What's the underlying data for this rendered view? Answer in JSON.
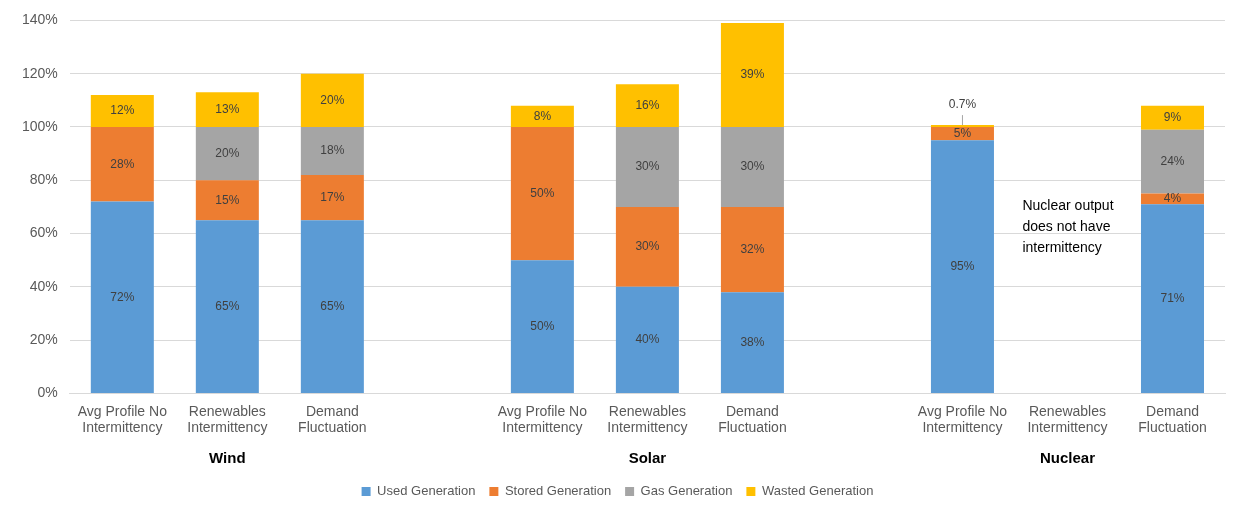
{
  "chart_data": {
    "type": "bar",
    "stacked": true,
    "categories": [
      "Avg Profile No Intermittency",
      "Renewables Intermittency",
      "Demand Fluctuation",
      null,
      "Avg Profile No Intermittency",
      "Renewables Intermittency",
      "Demand Fluctuation",
      null,
      "Avg Profile No Intermittency",
      "Renewables Intermittency",
      "Demand Fluctuation"
    ],
    "series": [
      {
        "name": "Used Generation",
        "color": "#5b9bd5",
        "values": [
          72,
          65,
          65,
          null,
          50,
          40,
          38,
          null,
          95,
          null,
          71
        ],
        "value_labels": [
          "72%",
          "65%",
          "65%",
          null,
          "50%",
          "40%",
          "38%",
          null,
          "95%",
          null,
          "71%"
        ]
      },
      {
        "name": "Stored Generation",
        "color": "#ed7d31",
        "values": [
          28,
          15,
          17,
          null,
          50,
          30,
          32,
          null,
          5,
          null,
          4
        ],
        "value_labels": [
          "28%",
          "15%",
          "17%",
          null,
          "50%",
          "30%",
          "32%",
          null,
          "5%",
          null,
          "4%"
        ]
      },
      {
        "name": "Gas Generation",
        "color": "#a5a5a5",
        "values": [
          null,
          20,
          18,
          null,
          null,
          30,
          30,
          null,
          null,
          null,
          24
        ],
        "value_labels": [
          null,
          "20%",
          "18%",
          null,
          null,
          "30%",
          "30%",
          null,
          null,
          null,
          "24%"
        ]
      },
      {
        "name": "Wasted Generation",
        "color": "#ffc000",
        "values": [
          12,
          13,
          20,
          null,
          8,
          16,
          39,
          null,
          0.7,
          null,
          9
        ],
        "value_labels": [
          "12%",
          "13%",
          "20%",
          null,
          "8%",
          "16%",
          "39%",
          null,
          "0.7%",
          null,
          "9%"
        ]
      }
    ],
    "ylim": [
      0,
      140
    ],
    "yticks": [
      {
        "value": 0,
        "label": "0%"
      },
      {
        "value": 20,
        "label": "20%"
      },
      {
        "value": 40,
        "label": "40%"
      },
      {
        "value": 60,
        "label": "60%"
      },
      {
        "value": 80,
        "label": "80%"
      },
      {
        "value": 100,
        "label": "100%"
      },
      {
        "value": 120,
        "label": "120%"
      },
      {
        "value": 140,
        "label": "140%"
      }
    ],
    "grid": "y",
    "legend": "bottom",
    "annotations": [
      "Wind",
      "Solar",
      "Nuclear",
      "Nuclear output does not have intermittency"
    ]
  }
}
